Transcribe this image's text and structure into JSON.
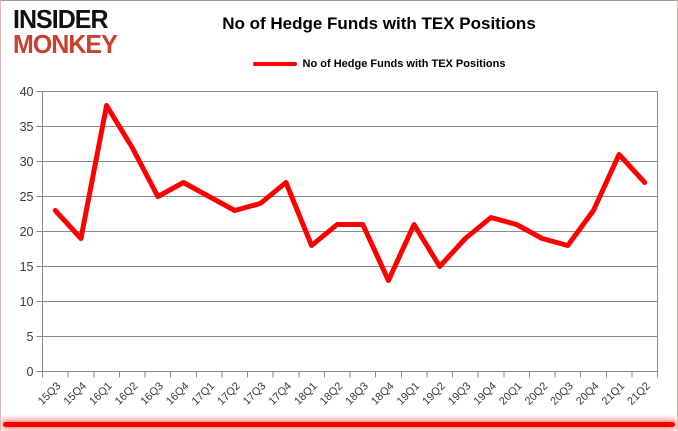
{
  "header": {
    "logo": {
      "line1": "INSIDER",
      "line2": "MONKEY",
      "line1_color": "#111111",
      "line2_color": "#c9402e"
    }
  },
  "chart_data": {
    "type": "line",
    "title": "No of Hedge Funds with TEX Positions",
    "categories": [
      "15Q3",
      "15Q4",
      "16Q1",
      "16Q2",
      "16Q3",
      "16Q4",
      "17Q1",
      "17Q2",
      "17Q3",
      "17Q4",
      "18Q1",
      "18Q2",
      "18Q3",
      "18Q4",
      "19Q1",
      "19Q2",
      "19Q3",
      "19Q4",
      "20Q1",
      "20Q2",
      "20Q3",
      "20Q4",
      "21Q1",
      "21Q2"
    ],
    "series": [
      {
        "name": "No of Hedge Funds with TEX Positions",
        "color": "#ff0000",
        "values": [
          23,
          19,
          38,
          32,
          25,
          27,
          25,
          23,
          24,
          27,
          18,
          21,
          21,
          13,
          21,
          15,
          19,
          22,
          21,
          19,
          18,
          23,
          31,
          27
        ]
      }
    ],
    "xlabel": "",
    "ylabel": "",
    "ylim": [
      0,
      40
    ],
    "ytick_step": 5,
    "yticks": [
      0,
      5,
      10,
      15,
      20,
      25,
      30,
      35,
      40
    ],
    "grid": "horizontal",
    "gridline_color": "#8a8a8a",
    "tick_label_color": "#3a3a3a",
    "legend_position": "top-center",
    "line_width": 5,
    "accent_bar_color": "#f40000"
  }
}
